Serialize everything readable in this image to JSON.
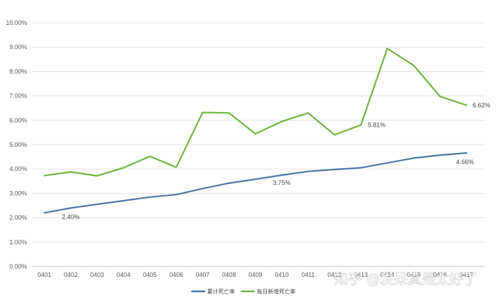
{
  "chart_data": {
    "type": "line",
    "title": "",
    "xlabel": "",
    "ylabel": "",
    "categories": [
      "0401",
      "0402",
      "0403",
      "0404",
      "0405",
      "0406",
      "0407",
      "0408",
      "0409",
      "0410",
      "0411",
      "0412",
      "0413",
      "0414",
      "0415",
      "0416",
      "0417"
    ],
    "ylim": [
      0,
      10
    ],
    "y_ticks": [
      "0.00%",
      "1.00%",
      "2.00%",
      "3.00%",
      "4.00%",
      "5.00%",
      "6.00%",
      "7.00%",
      "8.00%",
      "9.00%",
      "10.00%"
    ],
    "grid": "horizontal",
    "legend_position": "bottom",
    "series": [
      {
        "name": "累计死亡率",
        "color": "#4a76a8",
        "values": [
          2.2,
          2.4,
          2.55,
          2.7,
          2.85,
          2.95,
          3.2,
          3.42,
          3.58,
          3.75,
          3.9,
          3.98,
          4.05,
          4.25,
          4.45,
          4.57,
          4.66
        ]
      },
      {
        "name": "每日新增死亡率",
        "color": "#6db33f",
        "values": [
          3.73,
          3.88,
          3.72,
          4.05,
          4.52,
          4.07,
          6.32,
          6.3,
          5.45,
          5.95,
          6.3,
          5.4,
          5.81,
          8.95,
          8.25,
          6.98,
          6.62
        ]
      }
    ],
    "annotations": [
      {
        "text": "2.40%",
        "series": 0,
        "index": 1
      },
      {
        "text": "3.75%",
        "series": 0,
        "index": 9
      },
      {
        "text": "4.66%",
        "series": 0,
        "index": 16
      },
      {
        "text": "5.81%",
        "series": 1,
        "index": 12
      },
      {
        "text": "6.62%",
        "series": 1,
        "index": 16
      }
    ]
  },
  "watermark": "知乎 @发呆真是太好了"
}
